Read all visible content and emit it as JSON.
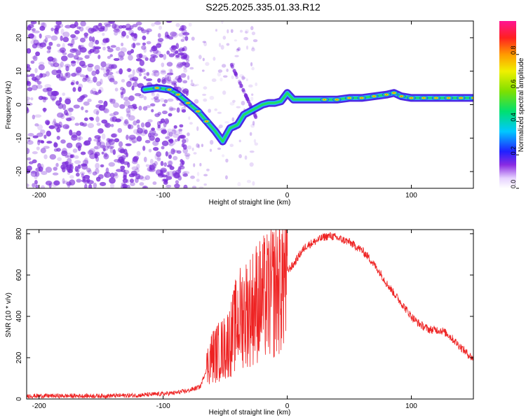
{
  "title": "S225.2025.335.01.33.R12",
  "colors": {
    "frame": "#000000",
    "snr_line": "#ee2222",
    "noise_speckle": "#7a2bd9"
  },
  "chart_data": [
    {
      "type": "heatmap",
      "name": "spectrogram",
      "xlabel": "Height of straight line (km)",
      "ylabel": "Frequency (Hz)",
      "xlim": [
        -210,
        150
      ],
      "ylim": [
        -25,
        25
      ],
      "xticks": [
        -200,
        -100,
        0,
        100
      ],
      "xtick_labels": [
        "-200",
        "-100",
        "0",
        "100"
      ],
      "yticks": [
        20,
        10,
        0,
        -10,
        -20
      ],
      "ytick_labels": [
        "20",
        "10",
        "0",
        "-10",
        "-20"
      ],
      "ridge": {
        "x": [
          -115,
          -105,
          -95,
          -88,
          -80,
          -72,
          -65,
          -58,
          -52,
          -46,
          -40,
          -35,
          -30,
          -25,
          -20,
          -15,
          -10,
          -5,
          0,
          5,
          10,
          20,
          30,
          40,
          50,
          60,
          70,
          80,
          86,
          92,
          100,
          110,
          120,
          130,
          140,
          150
        ],
        "y": [
          4.5,
          5,
          4.5,
          3,
          0.5,
          -2,
          -5,
          -8,
          -11,
          -7,
          -6,
          -3,
          -2,
          -1,
          0,
          0.5,
          0.5,
          1,
          3.5,
          1.5,
          1.5,
          1.5,
          1.5,
          1.5,
          2,
          2,
          2.5,
          3,
          3.5,
          2.5,
          2,
          2,
          2,
          2,
          2,
          2
        ]
      },
      "colorbar": {
        "label": "Normalized spectral amplitude",
        "range": [
          0.0,
          1.0
        ],
        "ticks": [
          0.0,
          0.2,
          0.4,
          0.6,
          0.8
        ],
        "tick_labels": [
          "0.0",
          "0.2",
          "0.4",
          "0.6",
          "0.8"
        ]
      }
    },
    {
      "type": "line",
      "name": "snr",
      "xlabel": "Height of straight line (km)",
      "ylabel": "SNR (10 * v/v)",
      "xlim": [
        -210,
        150
      ],
      "ylim": [
        0,
        820
      ],
      "xticks": [
        -200,
        -100,
        0,
        100
      ],
      "xtick_labels": [
        "-200",
        "-100",
        "0",
        "100"
      ],
      "yticks": [
        0,
        200,
        400,
        600,
        800
      ],
      "ytick_labels": [
        "0",
        "200",
        "400",
        "600",
        "800"
      ],
      "series": [
        {
          "name": "SNR",
          "x": [
            -210,
            -180,
            -150,
            -120,
            -100,
            -90,
            -80,
            -70,
            -62,
            -55,
            -50,
            -45,
            -40,
            -35,
            -30,
            -25,
            -20,
            -15,
            -10,
            -5,
            0,
            5,
            10,
            15,
            20,
            25,
            30,
            35,
            40,
            45,
            50,
            55,
            60,
            65,
            70,
            75,
            80,
            85,
            90,
            95,
            100,
            105,
            110,
            115,
            120,
            125,
            130,
            135,
            140,
            145,
            150
          ],
          "values": [
            15,
            15,
            15,
            18,
            25,
            30,
            40,
            60,
            200,
            230,
            250,
            300,
            380,
            420,
            430,
            470,
            480,
            500,
            530,
            580,
            620,
            650,
            700,
            740,
            755,
            770,
            785,
            790,
            780,
            770,
            760,
            740,
            720,
            690,
            650,
            610,
            560,
            520,
            480,
            440,
            400,
            370,
            350,
            335,
            335,
            330,
            310,
            280,
            250,
            220,
            195
          ]
        }
      ]
    }
  ]
}
